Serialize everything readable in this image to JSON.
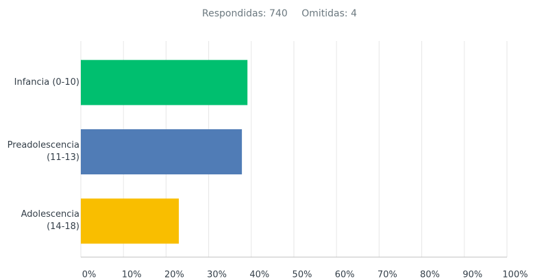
{
  "chart_data": {
    "type": "hbar",
    "subtitle": [
      "Respondidas: 740",
      "Omitidas: 4"
    ],
    "categories": [
      "Infancia (0-10)",
      "Preadolescencia (11-13)",
      "Adolescencia (14-18)"
    ],
    "values": [
      39.1,
      37.8,
      23.0
    ],
    "colors": [
      "#00bf6f",
      "#507cb6",
      "#f9be00"
    ],
    "xlim": [
      0,
      100
    ],
    "xticks": [
      {
        "value": 0,
        "label": "0%"
      },
      {
        "value": 10,
        "label": "10%"
      },
      {
        "value": 20,
        "label": "20%"
      },
      {
        "value": 30,
        "label": "30%"
      },
      {
        "value": 40,
        "label": "40%"
      },
      {
        "value": 50,
        "label": "50%"
      },
      {
        "value": 60,
        "label": "60%"
      },
      {
        "value": 70,
        "label": "70%"
      },
      {
        "value": 80,
        "label": "80%"
      },
      {
        "value": 90,
        "label": "90%"
      },
      {
        "value": 100,
        "label": "100%"
      }
    ],
    "grid": true
  }
}
